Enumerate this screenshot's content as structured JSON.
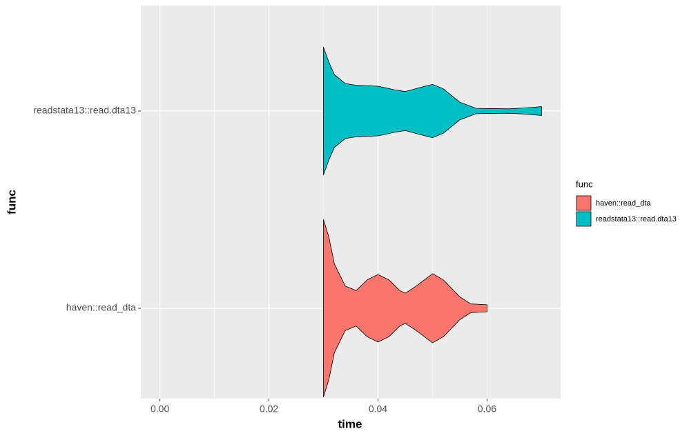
{
  "chart_data": {
    "type": "violin",
    "x_label": "time",
    "y_label": "func",
    "categories": [
      "haven::read_dta",
      "readstata13::read.dta13"
    ],
    "series": [
      {
        "name": "haven::read_dta",
        "color": "#f8766d",
        "x": [
          0.03,
          0.031,
          0.032,
          0.034,
          0.036,
          0.038,
          0.04,
          0.042,
          0.044,
          0.045,
          0.047,
          0.05,
          0.052,
          0.055,
          0.057,
          0.06
        ],
        "widths": [
          1.0,
          0.8,
          0.5,
          0.25,
          0.2,
          0.32,
          0.38,
          0.32,
          0.2,
          0.17,
          0.25,
          0.39,
          0.32,
          0.13,
          0.05,
          0.04
        ]
      },
      {
        "name": "readstata13::read.dta13",
        "color": "#00bfc4",
        "x": [
          0.03,
          0.031,
          0.032,
          0.034,
          0.036,
          0.04,
          0.043,
          0.045,
          0.048,
          0.05,
          0.052,
          0.055,
          0.058,
          0.064,
          0.067,
          0.07
        ],
        "widths": [
          0.72,
          0.55,
          0.41,
          0.31,
          0.29,
          0.28,
          0.24,
          0.22,
          0.27,
          0.3,
          0.25,
          0.1,
          0.03,
          0.025,
          0.035,
          0.05
        ]
      }
    ],
    "xlim": [
      -0.0035,
      0.0735
    ],
    "xticks": [
      {
        "value": 0,
        "label": "0.00"
      },
      {
        "value": 0.02,
        "label": "0.02"
      },
      {
        "value": 0.04,
        "label": "0.04"
      },
      {
        "value": 0.06,
        "label": "0.06"
      }
    ],
    "xminor": [
      0.01,
      0.03,
      0.05
    ],
    "grid": true,
    "legend_title": "func",
    "legend": "right"
  }
}
